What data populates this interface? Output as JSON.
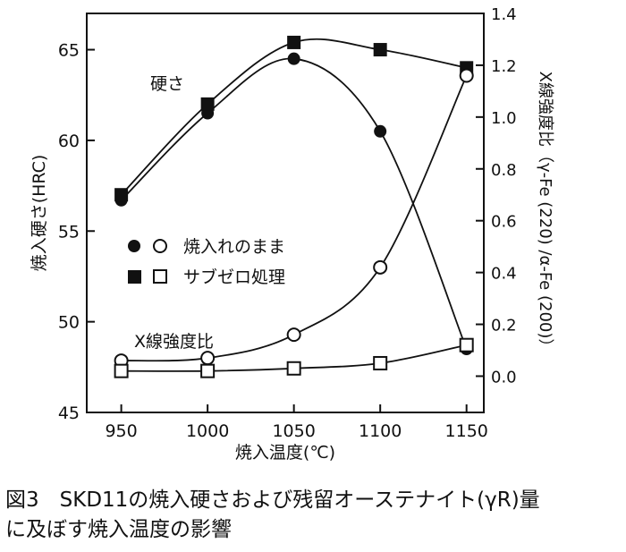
{
  "chart_data": {
    "type": "line",
    "xlabel": "焼入温度(℃)",
    "ylabel_left": "焼入硬さ(HRC)",
    "ylabel_right": "X線強度比（γ-Fe (220) /α-Fe (200)）",
    "x_ticks": [
      "950",
      "1000",
      "1050",
      "1100",
      "1150"
    ],
    "y_left_ticks": [
      "45",
      "50",
      "55",
      "60",
      "65"
    ],
    "y_right_ticks": [
      "0.0",
      "0.2",
      "0.4",
      "0.6",
      "0.8",
      "1.0",
      "1.2",
      "1.4"
    ],
    "xlim": [
      930,
      1160
    ],
    "ylim_left": [
      45,
      67
    ],
    "ylim_right": [
      -0.14,
      1.4
    ],
    "annotations": {
      "hardness": "硬さ",
      "xray": "X線強度比"
    },
    "legend": {
      "as_quenched": "焼入れのまま",
      "subzero": "サブゼロ処理",
      "placement": "middle-left"
    },
    "series": [
      {
        "name": "焼入れのまま",
        "group": "hardness",
        "axis": "left",
        "marker": "filled-circle",
        "x": [
          950,
          1000,
          1050,
          1100,
          1150
        ],
        "y": [
          56.7,
          61.5,
          64.5,
          60.5,
          48.5
        ]
      },
      {
        "name": "サブゼロ処理",
        "group": "hardness",
        "axis": "left",
        "marker": "filled-square",
        "x": [
          950,
          1000,
          1050,
          1100,
          1150
        ],
        "y": [
          57.0,
          62.0,
          65.4,
          65.0,
          64.0
        ]
      },
      {
        "name": "焼入れのまま",
        "group": "xray",
        "axis": "right",
        "marker": "open-circle",
        "x": [
          950,
          1000,
          1050,
          1100,
          1150
        ],
        "y": [
          0.06,
          0.07,
          0.16,
          0.42,
          1.16
        ]
      },
      {
        "name": "サブゼロ処理",
        "group": "xray",
        "axis": "right",
        "marker": "open-square",
        "x": [
          950,
          1000,
          1050,
          1100,
          1150
        ],
        "y": [
          0.02,
          0.02,
          0.03,
          0.05,
          0.12
        ]
      }
    ]
  },
  "caption": {
    "line1": "図3　SKD11の焼入硬さおよび残留オーステナイト(γR)量",
    "line2": "に及ぼす焼入温度の影響"
  }
}
